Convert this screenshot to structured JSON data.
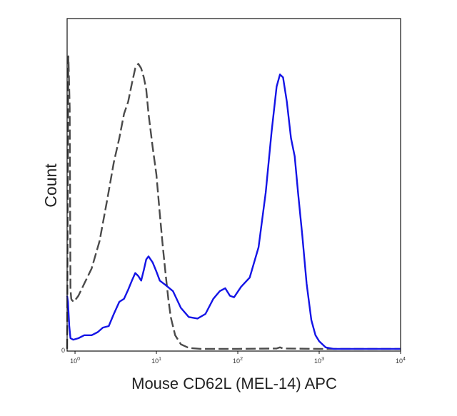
{
  "chart_data": {
    "type": "line",
    "xlabel": "Mouse CD62L (MEL-14) APC",
    "ylabel": "Count",
    "x_scale": "log",
    "xlim": [
      0.8,
      10000
    ],
    "ylim": [
      0,
      100
    ],
    "grid": false,
    "legend": "none",
    "x_ticks": [
      {
        "value": 1,
        "mantissa": "10",
        "exp": "0"
      },
      {
        "value": 10,
        "mantissa": "10",
        "exp": "1"
      },
      {
        "value": 100,
        "mantissa": "10",
        "exp": "2"
      },
      {
        "value": 1000,
        "mantissa": "10",
        "exp": "3"
      },
      {
        "value": 10000,
        "mantissa": "10",
        "exp": "4"
      }
    ],
    "y_ticks": [
      {
        "value": 0,
        "label": "0"
      }
    ],
    "series": [
      {
        "style": "dark-gray-dashed",
        "color": "#4a4a4a",
        "points": [
          [
            0.8,
            0.5
          ],
          [
            0.83,
            97
          ],
          [
            0.86,
            80
          ],
          [
            0.88,
            20
          ],
          [
            0.9,
            17
          ],
          [
            0.92,
            16.5
          ],
          [
            0.97,
            16
          ],
          [
            1.1,
            18
          ],
          [
            1.3,
            22
          ],
          [
            1.6,
            27
          ],
          [
            2.0,
            36
          ],
          [
            2.5,
            50
          ],
          [
            3.0,
            62
          ],
          [
            3.5,
            70
          ],
          [
            4.0,
            78
          ],
          [
            4.5,
            82
          ],
          [
            5.0,
            88
          ],
          [
            5.5,
            93
          ],
          [
            6.0,
            94.5
          ],
          [
            6.5,
            93
          ],
          [
            7.0,
            90
          ],
          [
            7.5,
            86
          ],
          [
            8.0,
            78
          ],
          [
            9.0,
            67
          ],
          [
            10,
            58
          ],
          [
            11,
            45
          ],
          [
            12,
            34
          ],
          [
            13,
            25
          ],
          [
            14,
            17
          ],
          [
            15,
            11
          ],
          [
            17,
            5
          ],
          [
            20,
            2
          ],
          [
            25,
            0.8
          ],
          [
            35,
            0.5
          ],
          [
            100,
            0.5
          ],
          [
            300,
            0.6
          ],
          [
            330,
            1.0
          ],
          [
            360,
            0.6
          ],
          [
            1000,
            0.5
          ],
          [
            10000,
            0.5
          ]
        ]
      },
      {
        "style": "blue-solid",
        "color": "#1414e6",
        "points": [
          [
            0.8,
            18
          ],
          [
            0.82,
            16
          ],
          [
            0.85,
            8
          ],
          [
            0.88,
            4
          ],
          [
            0.95,
            3.5
          ],
          [
            1.1,
            4
          ],
          [
            1.3,
            5
          ],
          [
            1.6,
            5
          ],
          [
            1.9,
            6
          ],
          [
            2.2,
            7.5
          ],
          [
            2.6,
            8
          ],
          [
            3.0,
            12
          ],
          [
            3.5,
            16
          ],
          [
            4.0,
            17
          ],
          [
            4.5,
            20
          ],
          [
            5.0,
            23
          ],
          [
            5.5,
            25.5
          ],
          [
            6.0,
            24.5
          ],
          [
            6.5,
            23
          ],
          [
            7.0,
            26.5
          ],
          [
            7.5,
            30
          ],
          [
            8.0,
            31
          ],
          [
            9.0,
            29
          ],
          [
            10,
            26
          ],
          [
            11,
            23
          ],
          [
            13,
            21.5
          ],
          [
            16,
            19.5
          ],
          [
            20,
            14
          ],
          [
            25,
            11
          ],
          [
            32,
            10.5
          ],
          [
            40,
            12
          ],
          [
            50,
            17
          ],
          [
            60,
            19.5
          ],
          [
            70,
            20.5
          ],
          [
            80,
            18
          ],
          [
            90,
            17.5
          ],
          [
            110,
            21
          ],
          [
            140,
            24
          ],
          [
            180,
            34
          ],
          [
            220,
            52
          ],
          [
            260,
            72
          ],
          [
            300,
            87
          ],
          [
            330,
            91
          ],
          [
            360,
            90
          ],
          [
            400,
            82
          ],
          [
            450,
            70
          ],
          [
            500,
            64
          ],
          [
            550,
            52
          ],
          [
            620,
            38
          ],
          [
            700,
            22
          ],
          [
            800,
            10
          ],
          [
            900,
            5
          ],
          [
            1000,
            3
          ],
          [
            1200,
            1
          ],
          [
            1500,
            0.5
          ],
          [
            10000,
            0.5
          ]
        ]
      }
    ]
  }
}
